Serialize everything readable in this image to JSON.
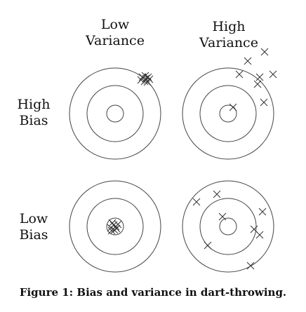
{
  "columns": [
    {
      "line1": "Low",
      "line2": "Variance"
    },
    {
      "line1": "High",
      "line2": "Variance"
    }
  ],
  "rows": [
    {
      "line1": "High",
      "line2": "Bias"
    },
    {
      "line1": "Low",
      "line2": "Bias"
    }
  ],
  "caption": "Figure 1: Bias and variance in dart-throwing.",
  "targets": [
    {
      "name": "target-high-bias-low-variance"
    },
    {
      "name": "target-high-bias-high-variance"
    },
    {
      "name": "target-low-bias-low-variance"
    },
    {
      "name": "target-low-bias-high-variance"
    }
  ]
}
